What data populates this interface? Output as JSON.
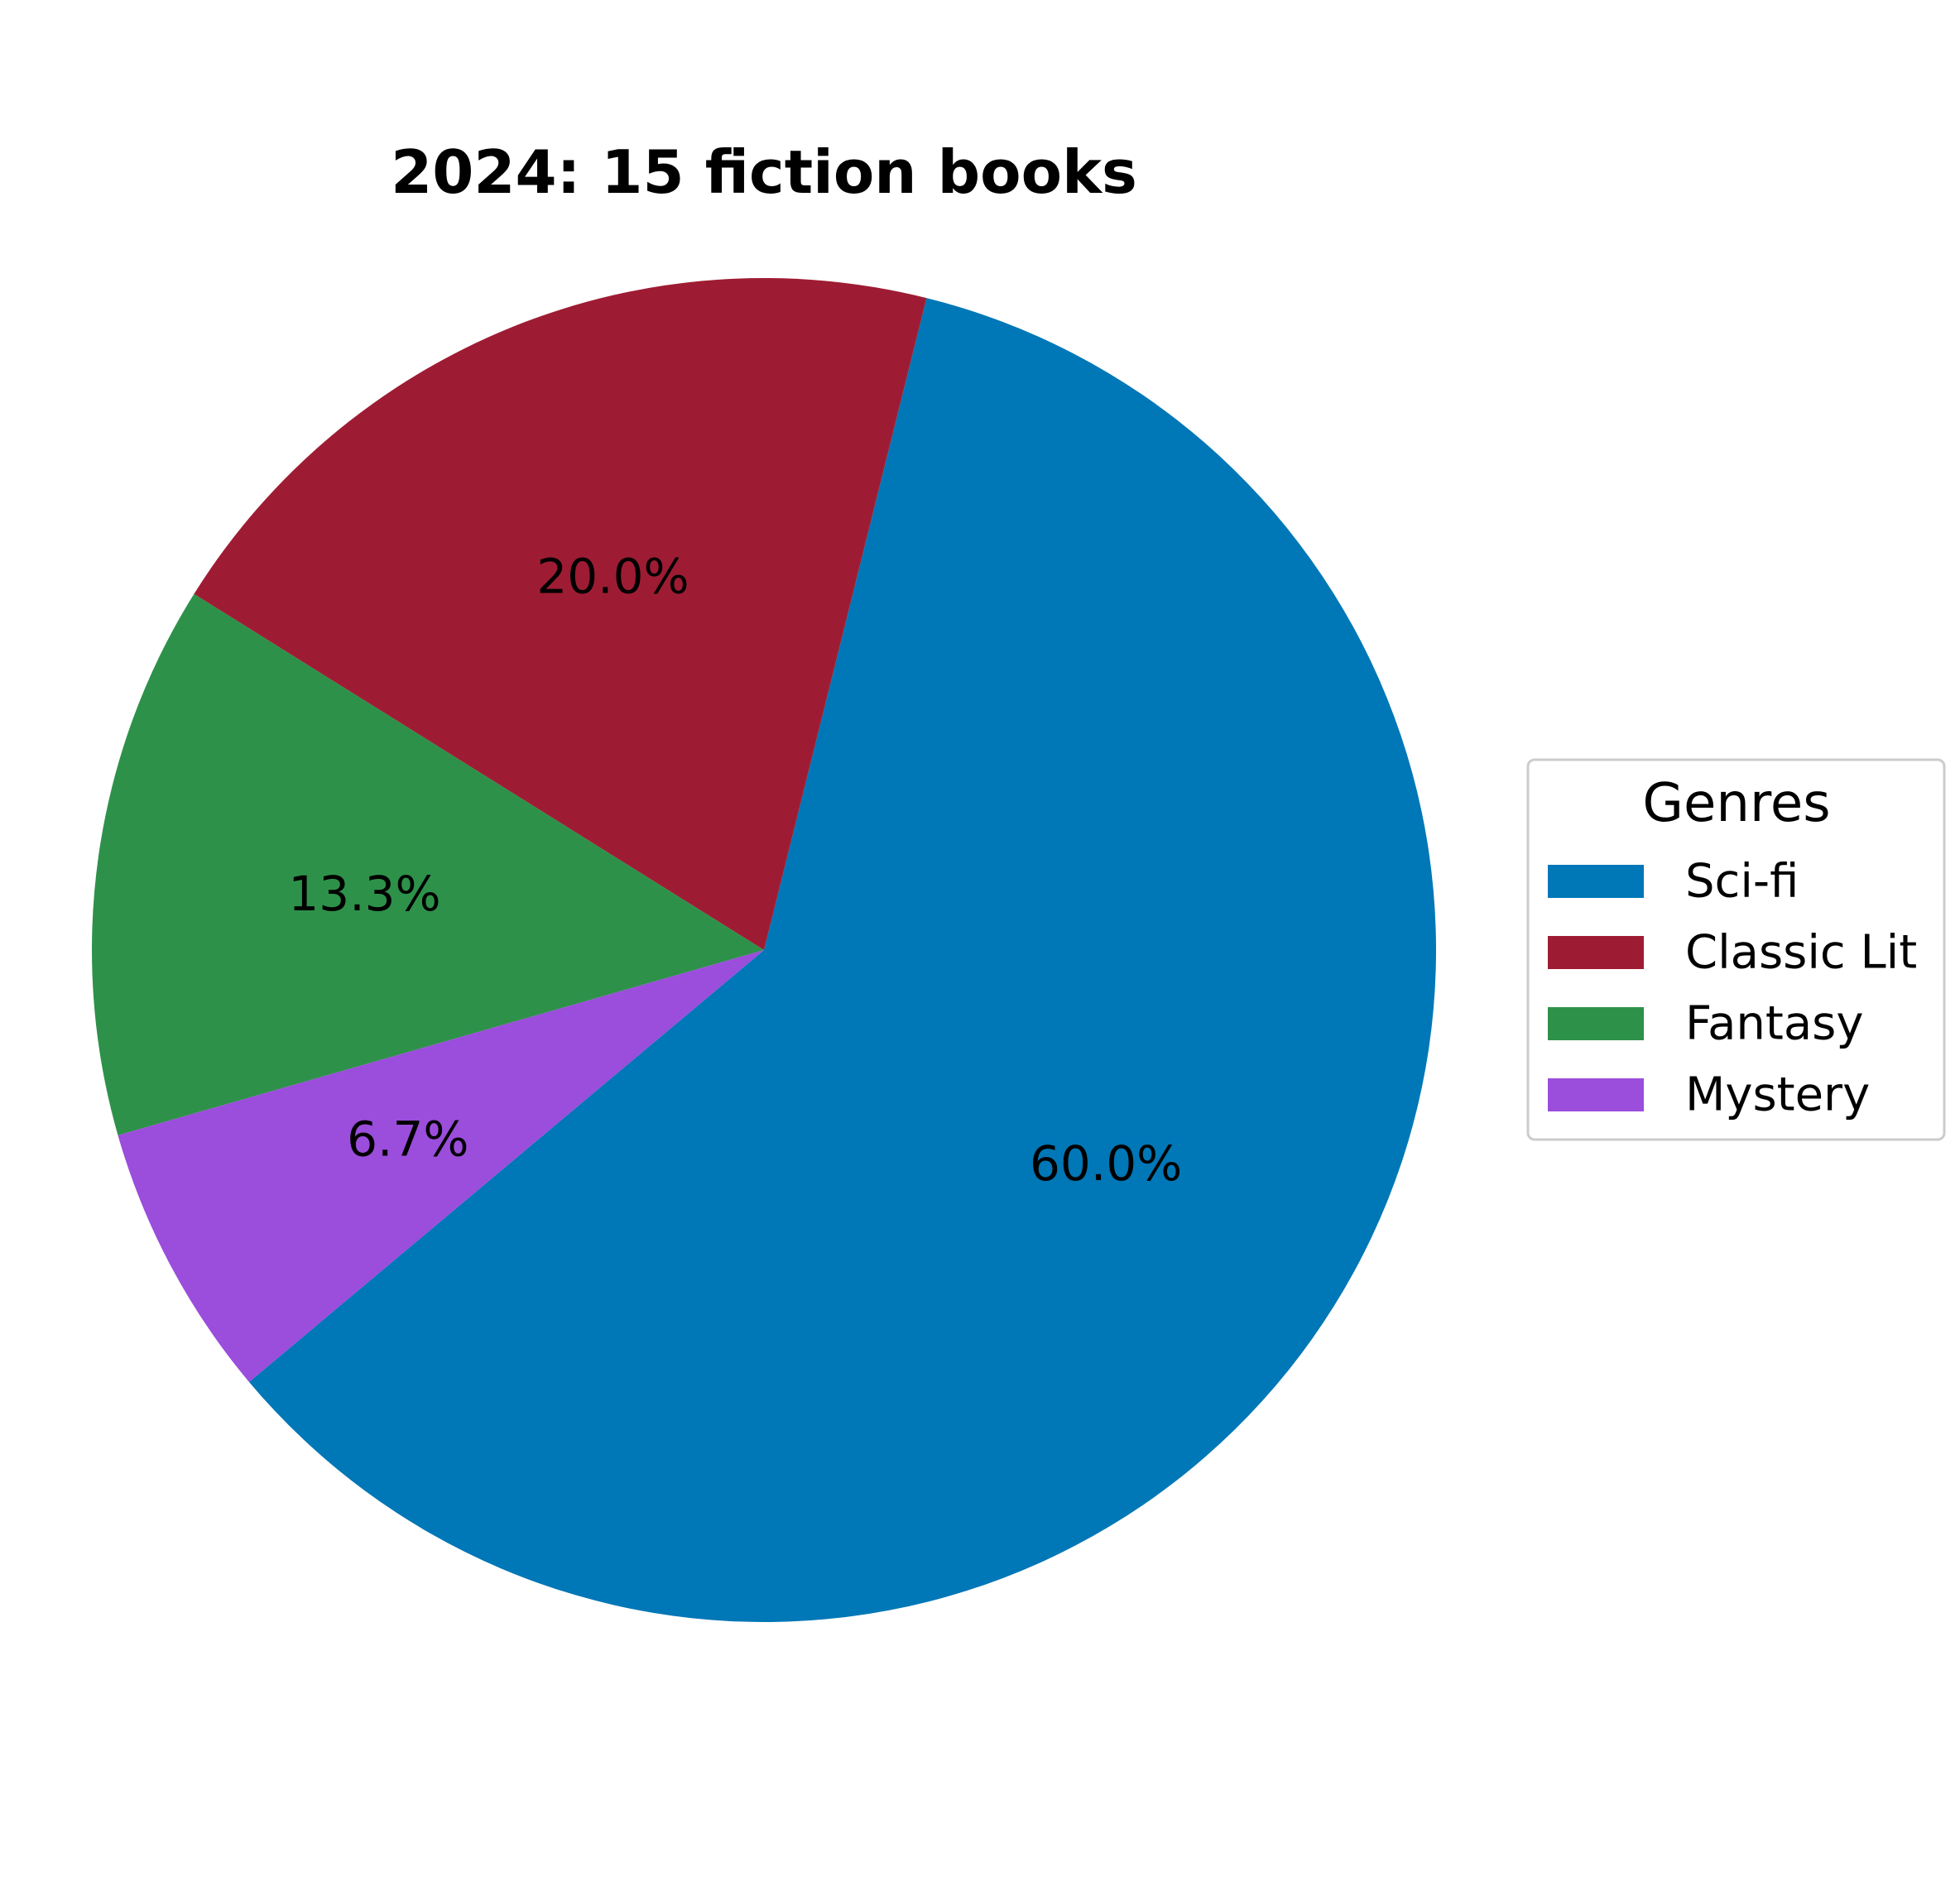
{
  "chart_data": {
    "type": "pie",
    "title": "2024: 15 fiction books",
    "categories": [
      "Sci-fi",
      "Classic Lit",
      "Fantasy",
      "Mystery"
    ],
    "values": [
      9,
      3,
      2,
      1
    ],
    "percent_labels": [
      "60.0%",
      "20.0%",
      "13.3%",
      "6.7%"
    ],
    "colors": [
      "#0077b6",
      "#9e1c33",
      "#2e914a",
      "#9b4ddb"
    ],
    "start_angle_deg": 220,
    "direction": "counterclockwise",
    "legend": {
      "title": "Genres",
      "placement": "center-right",
      "entries": [
        "Sci-fi",
        "Classic Lit",
        "Fantasy",
        "Mystery"
      ]
    }
  }
}
